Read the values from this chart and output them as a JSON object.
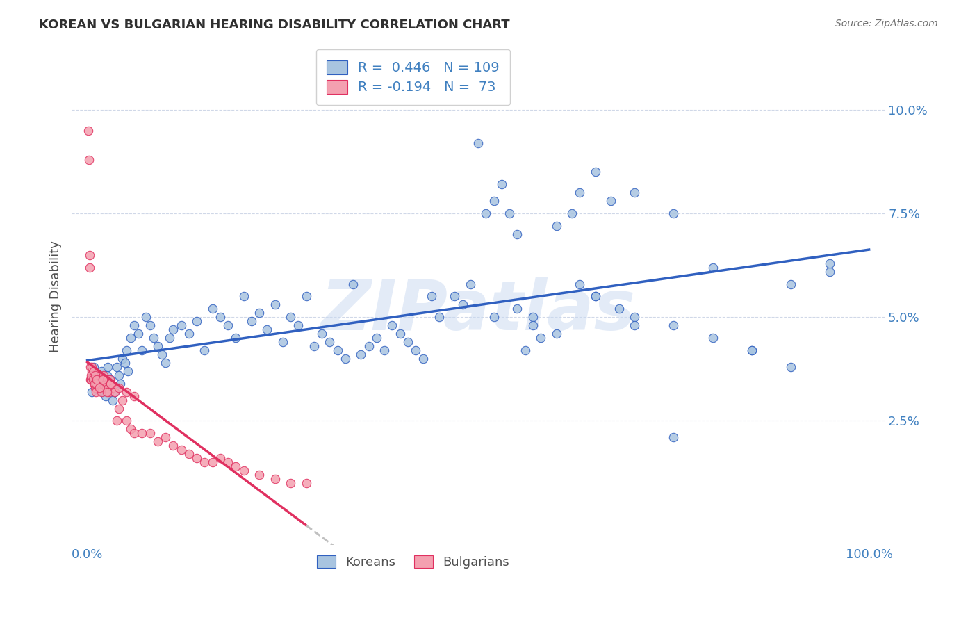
{
  "title": "KOREAN VS BULGARIAN HEARING DISABILITY CORRELATION CHART",
  "source": "Source: ZipAtlas.com",
  "xlabel": "",
  "ylabel": "Hearing Disability",
  "xlim": [
    0,
    100
  ],
  "ylim": [
    -0.5,
    11.5
  ],
  "yticks": [
    2.5,
    5.0,
    7.5,
    10.0
  ],
  "ytick_labels": [
    "2.5%",
    "5.0%",
    "7.5%",
    "10.0%"
  ],
  "xticks": [
    0,
    10,
    20,
    30,
    40,
    50,
    60,
    70,
    80,
    90,
    100
  ],
  "xtick_labels": [
    "0.0%",
    "",
    "",
    "",
    "",
    "",
    "",
    "",
    "",
    "",
    "100.0%"
  ],
  "korean_color": "#a8c4e0",
  "bulgarian_color": "#f4a0b0",
  "korean_R": 0.446,
  "korean_N": 109,
  "bulgarian_R": -0.194,
  "bulgarian_N": 73,
  "trend_korean_color": "#3060c0",
  "trend_bulgarian_color": "#e03060",
  "trend_ext_color": "#c0c0c0",
  "watermark": "ZIPatlas",
  "watermark_color": "#c8d8f0",
  "legend_label_korean": "Koreans",
  "legend_label_bulgarian": "Bulgarians",
  "background_color": "#ffffff",
  "grid_color": "#d0d8e8",
  "axis_color": "#4080c0",
  "title_color": "#303030",
  "korean_x": [
    0.5,
    0.6,
    0.8,
    1.0,
    1.2,
    1.5,
    1.7,
    1.8,
    2.0,
    2.1,
    2.3,
    2.5,
    2.6,
    2.8,
    3.0,
    3.2,
    3.5,
    3.8,
    4.0,
    4.2,
    4.5,
    4.8,
    5.0,
    5.2,
    5.5,
    6.0,
    6.5,
    7.0,
    7.5,
    8.0,
    8.5,
    9.0,
    9.5,
    10.0,
    10.5,
    11.0,
    12.0,
    13.0,
    14.0,
    15.0,
    16.0,
    17.0,
    18.0,
    19.0,
    20.0,
    21.0,
    22.0,
    23.0,
    24.0,
    25.0,
    26.0,
    27.0,
    28.0,
    29.0,
    30.0,
    31.0,
    32.0,
    33.0,
    34.0,
    35.0,
    36.0,
    37.0,
    38.0,
    39.0,
    40.0,
    41.0,
    42.0,
    43.0,
    44.0,
    45.0,
    47.0,
    48.0,
    49.0,
    50.0,
    51.0,
    52.0,
    53.0,
    54.0,
    55.0,
    57.0,
    58.0,
    60.0,
    62.0,
    63.0,
    65.0,
    67.0,
    70.0,
    75.0,
    80.0,
    85.0,
    90.0,
    52.0,
    55.0,
    57.0,
    60.0,
    63.0,
    65.0,
    68.0,
    70.0,
    75.0,
    80.0,
    85.0,
    90.0,
    95.0,
    95.0,
    56.0,
    65.0,
    70.0,
    75.0
  ],
  "korean_y": [
    3.5,
    3.2,
    3.8,
    3.6,
    3.4,
    3.3,
    3.5,
    3.7,
    3.2,
    3.4,
    3.1,
    3.6,
    3.8,
    3.3,
    3.5,
    3.0,
    3.2,
    3.8,
    3.6,
    3.4,
    4.0,
    3.9,
    4.2,
    3.7,
    4.5,
    4.8,
    4.6,
    4.2,
    5.0,
    4.8,
    4.5,
    4.3,
    4.1,
    3.9,
    4.5,
    4.7,
    4.8,
    4.6,
    4.9,
    4.2,
    5.2,
    5.0,
    4.8,
    4.5,
    5.5,
    4.9,
    5.1,
    4.7,
    5.3,
    4.4,
    5.0,
    4.8,
    5.5,
    4.3,
    4.6,
    4.4,
    4.2,
    4.0,
    5.8,
    4.1,
    4.3,
    4.5,
    4.2,
    4.8,
    4.6,
    4.4,
    4.2,
    4.0,
    5.5,
    5.0,
    5.5,
    5.3,
    5.8,
    9.2,
    7.5,
    7.8,
    8.2,
    7.5,
    7.0,
    5.0,
    4.5,
    7.2,
    7.5,
    8.0,
    8.5,
    7.8,
    8.0,
    7.5,
    6.2,
    4.2,
    5.8,
    5.0,
    5.2,
    4.8,
    4.6,
    5.8,
    5.5,
    5.2,
    5.0,
    4.8,
    4.5,
    4.2,
    3.8,
    6.1,
    6.3,
    4.2,
    5.5,
    4.8,
    2.1
  ],
  "bulgarian_x": [
    0.1,
    0.2,
    0.3,
    0.4,
    0.5,
    0.6,
    0.7,
    0.8,
    0.9,
    1.0,
    1.1,
    1.2,
    1.3,
    1.4,
    1.5,
    1.6,
    1.7,
    1.8,
    1.9,
    2.0,
    2.1,
    2.2,
    2.3,
    2.4,
    2.5,
    2.6,
    2.7,
    2.8,
    2.9,
    3.0,
    3.2,
    3.5,
    3.8,
    4.0,
    4.5,
    5.0,
    5.5,
    6.0,
    7.0,
    8.0,
    9.0,
    10.0,
    11.0,
    12.0,
    13.0,
    14.0,
    15.0,
    16.0,
    17.0,
    18.0,
    19.0,
    20.0,
    22.0,
    24.0,
    26.0,
    28.0,
    0.3,
    0.4,
    0.5,
    0.6,
    0.7,
    0.8,
    0.9,
    1.0,
    1.1,
    1.2,
    1.5,
    2.0,
    2.5,
    3.0,
    4.0,
    5.0,
    6.0
  ],
  "bulgarian_y": [
    9.5,
    8.8,
    6.5,
    3.5,
    3.5,
    3.7,
    3.6,
    3.4,
    3.5,
    3.3,
    3.2,
    3.4,
    3.5,
    3.6,
    3.5,
    3.4,
    3.3,
    3.2,
    3.5,
    3.4,
    3.6,
    3.5,
    3.4,
    3.3,
    3.5,
    3.4,
    3.3,
    3.2,
    3.5,
    3.4,
    3.3,
    3.2,
    2.5,
    2.8,
    3.0,
    2.5,
    2.3,
    2.2,
    2.2,
    2.2,
    2.0,
    2.1,
    1.9,
    1.8,
    1.7,
    1.6,
    1.5,
    1.5,
    1.6,
    1.5,
    1.4,
    1.3,
    1.2,
    1.1,
    1.0,
    1.0,
    6.2,
    3.8,
    3.6,
    3.8,
    3.5,
    3.7,
    3.4,
    3.6,
    3.4,
    3.5,
    3.3,
    3.5,
    3.2,
    3.4,
    3.3,
    3.2,
    3.1
  ]
}
